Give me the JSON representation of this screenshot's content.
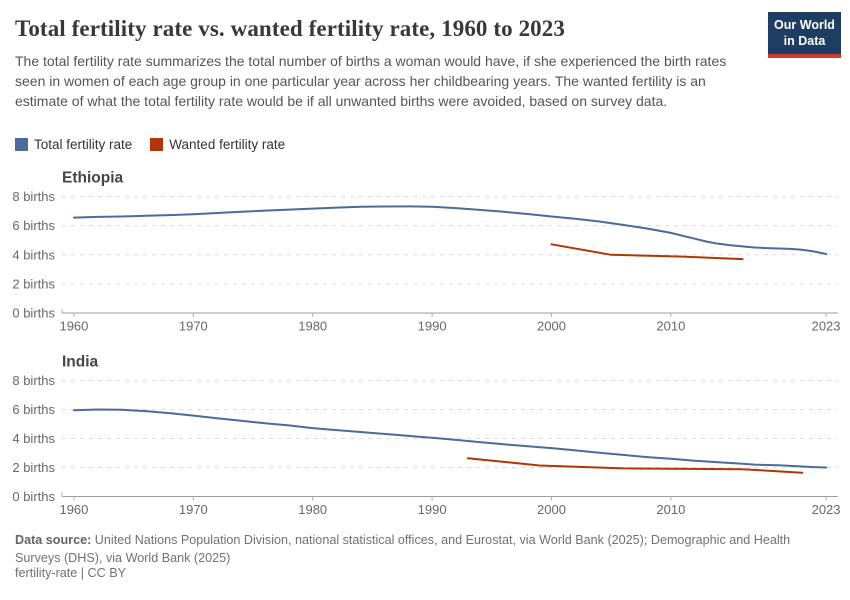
{
  "header": {
    "title": "Total fertility rate vs. wanted fertility rate, 1960 to 2023",
    "subtitle": "The total fertility rate summarizes the total number of births a woman would have, if she experienced the birth rates seen in women of each age group in one particular year across her childbearing years. The wanted fertility is an estimate of what the total fertility rate would be if all unwanted births were avoided, based on survey data.",
    "logo_line1": "Our World",
    "logo_line2": "in Data"
  },
  "legend": {
    "items": [
      {
        "label": "Total fertility rate",
        "color": "#4C6A9C"
      },
      {
        "label": "Wanted fertility rate",
        "color": "#B13507"
      }
    ]
  },
  "chart_data": {
    "type": "line",
    "title": "Total fertility rate vs. wanted fertility rate, 1960 to 2023",
    "ylabel": "births",
    "ylim": [
      0,
      8
    ],
    "grid": true,
    "legend_position": "top-left",
    "x_domain": [
      1959,
      2024
    ],
    "x_ticks": [
      {
        "value": 1960,
        "label": "1960"
      },
      {
        "value": 1970,
        "label": "1970"
      },
      {
        "value": 1980,
        "label": "1980"
      },
      {
        "value": 1990,
        "label": "1990"
      },
      {
        "value": 2000,
        "label": "2000"
      },
      {
        "value": 2010,
        "label": "2010"
      },
      {
        "value": 2023,
        "label": "2023"
      }
    ],
    "y_ticks": [
      {
        "value": 0,
        "label": "0 births"
      },
      {
        "value": 2,
        "label": "2 births"
      },
      {
        "value": 4,
        "label": "4 births"
      },
      {
        "value": 6,
        "label": "6 births"
      },
      {
        "value": 8,
        "label": "8 births"
      }
    ],
    "panels": [
      {
        "title": "Ethiopia",
        "series": [
          {
            "name": "Total fertility rate",
            "color": "#4C6A9C",
            "points": [
              [
                1960,
                6.55
              ],
              [
                1962,
                6.6
              ],
              [
                1964,
                6.63
              ],
              [
                1966,
                6.68
              ],
              [
                1968,
                6.72
              ],
              [
                1970,
                6.78
              ],
              [
                1972,
                6.87
              ],
              [
                1974,
                6.95
              ],
              [
                1976,
                7.03
              ],
              [
                1978,
                7.1
              ],
              [
                1980,
                7.17
              ],
              [
                1982,
                7.24
              ],
              [
                1984,
                7.29
              ],
              [
                1986,
                7.31
              ],
              [
                1988,
                7.32
              ],
              [
                1990,
                7.3
              ],
              [
                1992,
                7.2
              ],
              [
                1994,
                7.08
              ],
              [
                1996,
                6.95
              ],
              [
                1998,
                6.8
              ],
              [
                2000,
                6.63
              ],
              [
                2002,
                6.47
              ],
              [
                2004,
                6.28
              ],
              [
                2006,
                6.05
              ],
              [
                2008,
                5.8
              ],
              [
                2010,
                5.5
              ],
              [
                2011,
                5.3
              ],
              [
                2012,
                5.1
              ],
              [
                2013,
                4.9
              ],
              [
                2014,
                4.75
              ],
              [
                2015,
                4.65
              ],
              [
                2016,
                4.57
              ],
              [
                2017,
                4.5
              ],
              [
                2018,
                4.46
              ],
              [
                2019,
                4.43
              ],
              [
                2020,
                4.4
              ],
              [
                2021,
                4.35
              ],
              [
                2022,
                4.22
              ],
              [
                2023,
                4.05
              ]
            ]
          },
          {
            "name": "Wanted fertility rate",
            "color": "#B13507",
            "points": [
              [
                2000,
                4.72
              ],
              [
                2005,
                4.0
              ],
              [
                2011,
                3.87
              ],
              [
                2016,
                3.7
              ]
            ]
          }
        ]
      },
      {
        "title": "India",
        "series": [
          {
            "name": "Total fertility rate",
            "color": "#4C6A9C",
            "points": [
              [
                1960,
                5.95
              ],
              [
                1962,
                6.0
              ],
              [
                1964,
                5.98
              ],
              [
                1966,
                5.89
              ],
              [
                1968,
                5.75
              ],
              [
                1970,
                5.58
              ],
              [
                1972,
                5.4
              ],
              [
                1974,
                5.22
              ],
              [
                1976,
                5.05
              ],
              [
                1978,
                4.9
              ],
              [
                1980,
                4.72
              ],
              [
                1982,
                4.58
              ],
              [
                1984,
                4.45
              ],
              [
                1986,
                4.32
              ],
              [
                1988,
                4.18
              ],
              [
                1990,
                4.05
              ],
              [
                1992,
                3.9
              ],
              [
                1994,
                3.75
              ],
              [
                1996,
                3.6
              ],
              [
                1998,
                3.47
              ],
              [
                2000,
                3.34
              ],
              [
                2002,
                3.18
              ],
              [
                2004,
                3.02
              ],
              [
                2006,
                2.87
              ],
              [
                2008,
                2.72
              ],
              [
                2010,
                2.6
              ],
              [
                2012,
                2.47
              ],
              [
                2014,
                2.36
              ],
              [
                2016,
                2.26
              ],
              [
                2017,
                2.2
              ],
              [
                2018,
                2.17
              ],
              [
                2019,
                2.15
              ],
              [
                2020,
                2.11
              ],
              [
                2021,
                2.07
              ],
              [
                2022,
                2.03
              ],
              [
                2023,
                2.0
              ]
            ]
          },
          {
            "name": "Wanted fertility rate",
            "color": "#B13507",
            "points": [
              [
                1993,
                2.64
              ],
              [
                1999,
                2.14
              ],
              [
                2006,
                1.94
              ],
              [
                2016,
                1.88
              ],
              [
                2021,
                1.64
              ]
            ]
          }
        ]
      }
    ]
  },
  "footer": {
    "data_source_label": "Data source:",
    "data_source_text": " United Nations Population Division, national statistical offices, and Eurostat, via World Bank (2025); Demographic and Health Surveys (DHS), via World Bank (2025)",
    "license_line": "fertility-rate | CC BY"
  }
}
